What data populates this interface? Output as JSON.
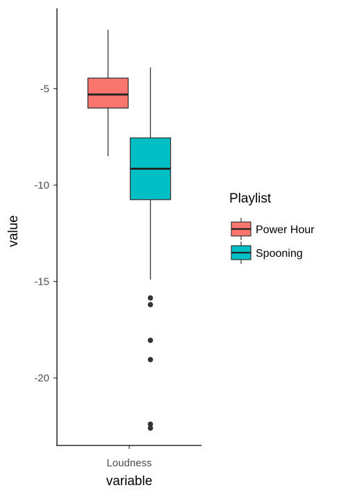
{
  "chart_data": {
    "type": "boxplot",
    "xlabel": "variable",
    "ylabel": "value",
    "categories": [
      "Loudness"
    ],
    "ylim": [
      -23.5,
      -0.8
    ],
    "yticks": [
      -5,
      -10,
      -15,
      -20
    ],
    "ytick_labels": [
      "-5",
      "-10",
      "-15",
      "-20"
    ],
    "grid": false,
    "legend": {
      "title": "Playlist",
      "placement": "right"
    },
    "series": [
      {
        "name": "Power Hour",
        "color": "#F8766D",
        "category": "Loudness",
        "whisker_low": -8.5,
        "q1": -6.0,
        "median": -5.3,
        "q3": -4.45,
        "whisker_high": -1.95,
        "outliers": []
      },
      {
        "name": "Spooning",
        "color": "#00BFC4",
        "category": "Loudness",
        "whisker_low": -14.9,
        "q1": -10.75,
        "median": -9.15,
        "q3": -7.55,
        "whisker_high": -3.9,
        "outliers": [
          -15.85,
          -16.2,
          -18.05,
          -19.05,
          -22.4,
          -22.6
        ]
      }
    ]
  }
}
